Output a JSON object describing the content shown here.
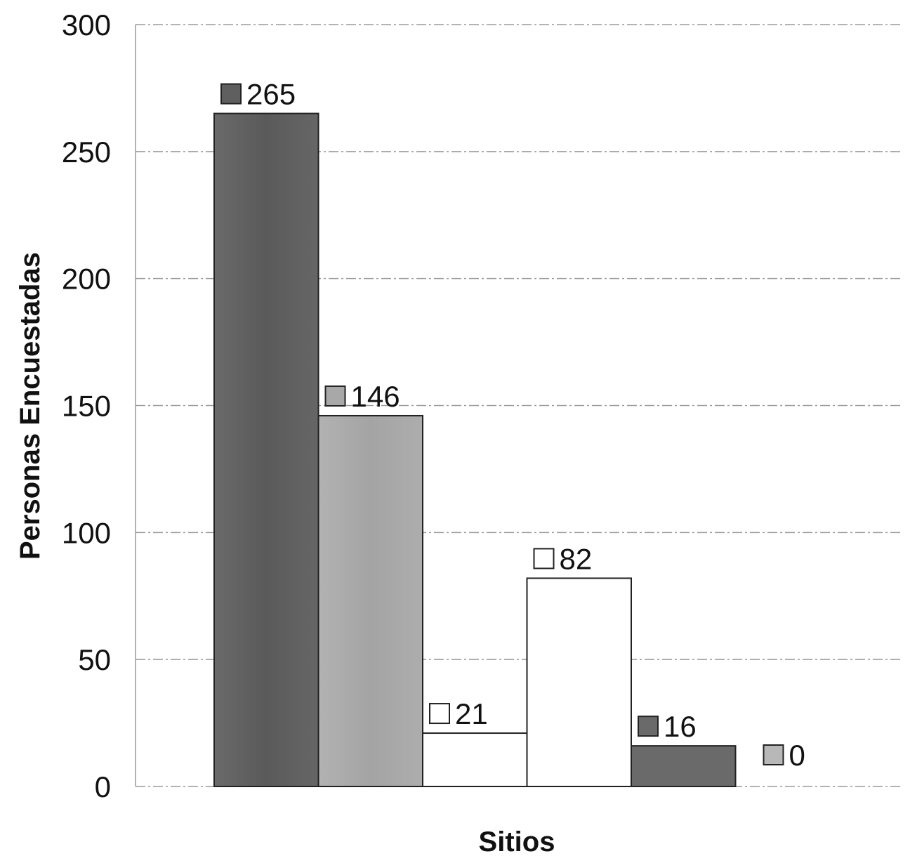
{
  "chart_data": {
    "type": "bar",
    "xlabel": "Sitios",
    "ylabel": "Personas Encuestadas",
    "ylim": [
      0,
      300
    ],
    "yticks": [
      0,
      50,
      100,
      150,
      200,
      250,
      300
    ],
    "grid": true,
    "legend": "none",
    "series": [
      {
        "value": 265,
        "label": "265",
        "color": "#5f5f5f"
      },
      {
        "value": 146,
        "label": "146",
        "color": "#a8a8a8"
      },
      {
        "value": 21,
        "label": "21",
        "color": "#ffffff"
      },
      {
        "value": 82,
        "label": "82",
        "color": "#ffffff"
      },
      {
        "value": 16,
        "label": "16",
        "color": "#6a6a6a"
      },
      {
        "value": 0,
        "label": "0",
        "color": "#b8b8b8"
      }
    ]
  }
}
